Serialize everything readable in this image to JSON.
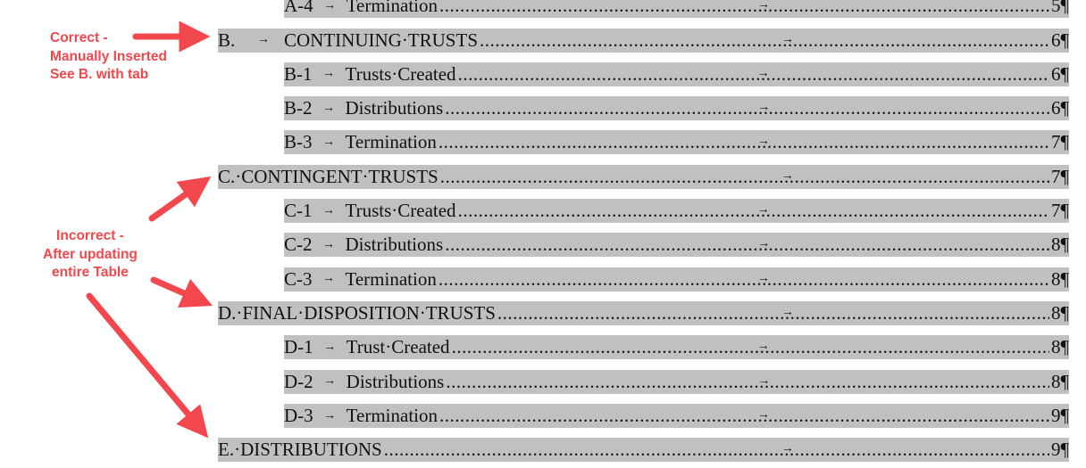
{
  "entries": [
    {
      "level": 2,
      "label": "A-4",
      "title": "Termination",
      "page": 5
    },
    {
      "level": 1,
      "label": "B.",
      "title": "CONTINUING·TRUSTS",
      "page": 6
    },
    {
      "level": 2,
      "label": "B-1",
      "title": "Trusts·Created",
      "page": 6
    },
    {
      "level": 2,
      "label": "B-2",
      "title": "Distributions",
      "page": 6
    },
    {
      "level": 2,
      "label": "B-3",
      "title": "Termination",
      "page": 7
    },
    {
      "level": 1,
      "title": "C.·CONTINGENT·TRUSTS",
      "page": 7
    },
    {
      "level": 2,
      "label": "C-1",
      "title": "Trusts·Created",
      "page": 7
    },
    {
      "level": 2,
      "label": "C-2",
      "title": "Distributions",
      "page": 8
    },
    {
      "level": 2,
      "label": "C-3",
      "title": "Termination",
      "page": 8
    },
    {
      "level": 1,
      "title": "D.·FINAL·DISPOSITION·TRUSTS",
      "page": 8
    },
    {
      "level": 2,
      "label": "D-1",
      "title": "Trust·Created",
      "page": 8
    },
    {
      "level": 2,
      "label": "D-2",
      "title": "Distributions",
      "page": 8
    },
    {
      "level": 2,
      "label": "D-3",
      "title": "Termination",
      "page": 9
    },
    {
      "level": 1,
      "title": "E.·DISTRIBUTIONS",
      "page": 9
    }
  ],
  "annotations": [
    {
      "lines": [
        "Correct -",
        "Manually Inserted",
        "See B. with tab"
      ]
    },
    {
      "lines": [
        "Incorrect -",
        "After updating",
        "entire Table"
      ]
    }
  ]
}
